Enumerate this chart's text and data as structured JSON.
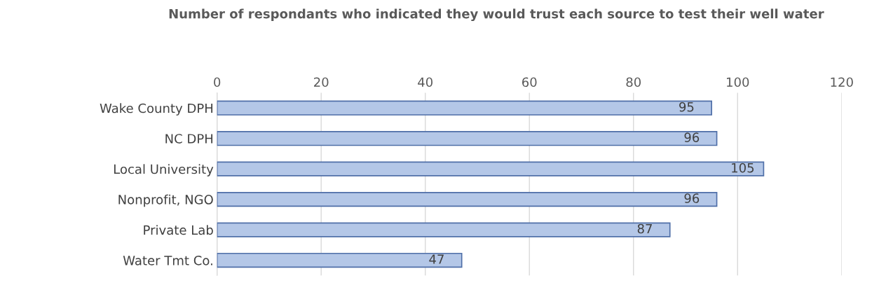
{
  "chart_data": {
    "type": "bar",
    "orientation": "horizontal",
    "title": "Number of respondants who indicated they would trust each source to test their well water",
    "categories": [
      "Wake County DPH",
      "NC DPH",
      "Local University",
      "Nonprofit, NGO",
      "Private Lab",
      "Water Tmt Co."
    ],
    "values": [
      95,
      96,
      105,
      96,
      87,
      47
    ],
    "color": "#b4c7e7",
    "xlim": [
      0,
      120
    ],
    "xticks": [
      0,
      20,
      40,
      60,
      80,
      100,
      120
    ],
    "grid": "x",
    "data_labels": true
  }
}
